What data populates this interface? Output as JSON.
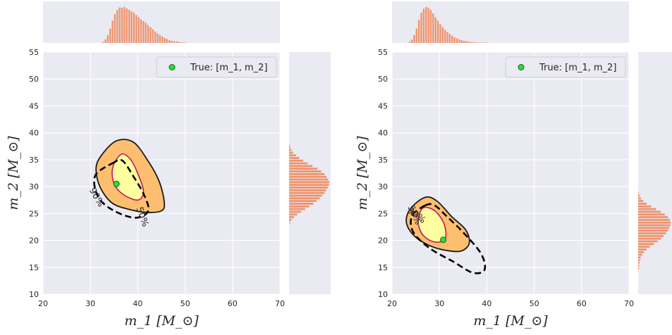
{
  "chart_data": [
    {
      "type": "scatter",
      "panel": "left",
      "xlabel": "m_1 [M_⊙]",
      "ylabel": "m_2 [M_⊙]",
      "xlim": [
        20,
        70
      ],
      "ylim": [
        10,
        55
      ],
      "xticks": [
        "20",
        "30",
        "40",
        "50",
        "60",
        "70"
      ],
      "yticks": [
        "10",
        "15",
        "20",
        "25",
        "30",
        "35",
        "40",
        "45",
        "50",
        "55"
      ],
      "grid": true,
      "legend": {
        "label": "True: [m_1, m_2]",
        "position": "top-right"
      },
      "true_point": {
        "x": 35.5,
        "y": 30.5
      },
      "contour_labels": [
        "50%",
        "90%"
      ],
      "contours": {
        "region_90": [
          [
            35.5,
            38.5
          ],
          [
            32.5,
            36
          ],
          [
            31.2,
            33.5
          ],
          [
            32,
            30
          ],
          [
            34.5,
            27
          ],
          [
            38,
            25.8
          ],
          [
            42,
            25.2
          ],
          [
            45,
            25.5
          ],
          [
            45.6,
            27
          ],
          [
            44.5,
            31
          ],
          [
            42,
            35
          ],
          [
            39,
            38.3
          ]
        ],
        "region_50": [
          [
            36.5,
            36
          ],
          [
            34.7,
            33.5
          ],
          [
            35,
            30.5
          ],
          [
            37,
            28.5
          ],
          [
            40,
            27.5
          ],
          [
            41.2,
            29
          ],
          [
            40.2,
            32
          ],
          [
            38.5,
            35
          ]
        ],
        "reference_90": [
          [
            35,
            34.5
          ],
          [
            31,
            32
          ],
          [
            31.7,
            28
          ],
          [
            35,
            25.5
          ],
          [
            39.5,
            24.2
          ],
          [
            42.2,
            25.5
          ],
          [
            41.3,
            28.5
          ],
          [
            39,
            32
          ],
          [
            36.8,
            34.8
          ]
        ]
      },
      "marginal_x": {
        "bins": [
          32.5,
          33,
          33.5,
          34,
          34.5,
          35,
          35.5,
          36,
          36.5,
          37,
          37.5,
          38,
          38.5,
          39,
          39.5,
          40,
          40.5,
          41,
          41.5,
          42,
          42.5,
          43,
          43.5,
          44,
          44.5,
          45,
          45.5,
          46,
          46.5,
          47,
          47.5,
          48,
          48.5,
          49,
          49.5,
          50
        ],
        "counts": [
          3,
          10,
          22,
          40,
          62,
          80,
          92,
          99,
          98,
          100,
          96,
          92,
          88,
          84,
          78,
          72,
          66,
          61,
          56,
          50,
          44,
          38,
          32,
          27,
          22,
          18,
          14,
          11,
          8,
          6,
          5,
          4,
          3,
          2,
          2,
          1
        ]
      },
      "marginal_y": {
        "bins": [
          23,
          23.5,
          24,
          24.5,
          25,
          25.5,
          26,
          26.5,
          27,
          27.5,
          28,
          28.5,
          29,
          29.5,
          30,
          30.5,
          31,
          31.5,
          32,
          32.5,
          33,
          33.5,
          34,
          34.5,
          35,
          35.5,
          36,
          36.5,
          37,
          37.5
        ],
        "counts": [
          2,
          6,
          12,
          20,
          30,
          40,
          50,
          60,
          68,
          76,
          82,
          88,
          92,
          96,
          99,
          100,
          97,
          93,
          88,
          80,
          70,
          58,
          46,
          35,
          25,
          17,
          10,
          6,
          3,
          1
        ]
      }
    },
    {
      "type": "scatter",
      "panel": "right",
      "xlabel": "m_1 [M_⊙]",
      "ylabel": "m_2 [M_⊙]",
      "xlim": [
        20,
        70
      ],
      "ylim": [
        10,
        55
      ],
      "xticks": [
        "20",
        "30",
        "40",
        "50",
        "60",
        "70"
      ],
      "yticks": [
        "10",
        "15",
        "20",
        "25",
        "30",
        "35",
        "40",
        "45",
        "50",
        "55"
      ],
      "grid": true,
      "legend": {
        "label": "True: [m_1, m_2]",
        "position": "top-right"
      },
      "true_point": {
        "x": 30.8,
        "y": 20.1
      },
      "contour_labels": [
        "50%",
        "90%"
      ],
      "contours": {
        "region_90": [
          [
            27,
            28
          ],
          [
            24,
            26
          ],
          [
            23,
            23.5
          ],
          [
            24.5,
            21
          ],
          [
            27.5,
            19.2
          ],
          [
            31,
            18.2
          ],
          [
            34.5,
            18
          ],
          [
            36.3,
            19.5
          ],
          [
            35.5,
            22
          ],
          [
            32.5,
            24.5
          ],
          [
            29.5,
            27.3
          ]
        ],
        "region_50": [
          [
            26.5,
            26
          ],
          [
            25.5,
            23.5
          ],
          [
            26.5,
            21
          ],
          [
            29,
            19.7
          ],
          [
            31.2,
            20.3
          ],
          [
            31,
            23
          ],
          [
            29,
            25.5
          ]
        ],
        "reference_90": [
          [
            27,
            26.5
          ],
          [
            24.2,
            24.5
          ],
          [
            24.5,
            21.5
          ],
          [
            28,
            18.5
          ],
          [
            33,
            16
          ],
          [
            37,
            14
          ],
          [
            39.5,
            14.5
          ],
          [
            38.8,
            17.5
          ],
          [
            35,
            21.5
          ],
          [
            31.5,
            24.5
          ],
          [
            29,
            26.5
          ]
        ]
      },
      "marginal_x": {
        "bins": [
          23.5,
          24,
          24.5,
          25,
          25.5,
          26,
          26.5,
          27,
          27.5,
          28,
          28.5,
          29,
          29.5,
          30,
          30.5,
          31,
          31.5,
          32,
          32.5,
          33,
          33.5,
          34,
          34.5,
          35,
          35.5,
          36,
          36.5,
          37,
          37.5,
          38,
          38.5,
          39,
          39.5,
          40
        ],
        "counts": [
          3,
          9,
          22,
          40,
          64,
          84,
          95,
          100,
          98,
          92,
          82,
          72,
          62,
          52,
          44,
          37,
          30,
          25,
          20,
          16,
          13,
          10,
          8,
          6,
          5,
          4,
          3,
          2,
          2,
          1,
          1,
          1,
          1,
          1
        ]
      },
      "marginal_y": {
        "bins": [
          14.5,
          15,
          15.5,
          16,
          16.5,
          17,
          17.5,
          18,
          18.5,
          19,
          19.5,
          20,
          20.5,
          21,
          21.5,
          22,
          22.5,
          23,
          23.5,
          24,
          24.5,
          25,
          25.5,
          26,
          26.5,
          27,
          27.5,
          28,
          28.5
        ],
        "counts": [
          2,
          3,
          4,
          6,
          8,
          12,
          18,
          26,
          36,
          48,
          60,
          70,
          78,
          86,
          92,
          96,
          99,
          100,
          98,
          92,
          82,
          70,
          55,
          40,
          26,
          16,
          9,
          5,
          2
        ]
      }
    }
  ]
}
